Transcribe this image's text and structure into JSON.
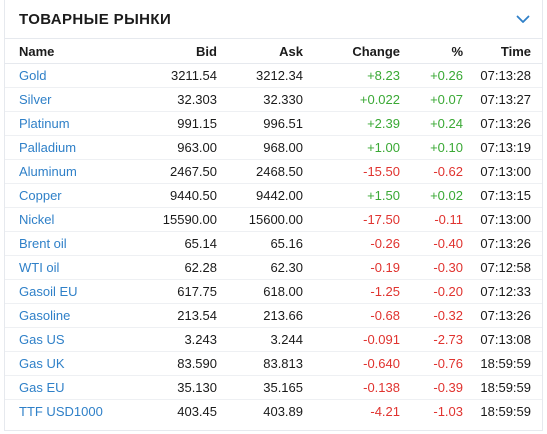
{
  "widget": {
    "title": "ТОВАРНЫЕ РЫНКИ",
    "collapse_icon": "chevron-down-icon",
    "accent_color": "#2f80c8",
    "positive_color": "#3aa935",
    "negative_color": "#e0332f"
  },
  "table": {
    "headers": {
      "name": "Name",
      "bid": "Bid",
      "ask": "Ask",
      "change": "Change",
      "pct": "%",
      "time": "Time"
    },
    "rows": [
      {
        "name": "Gold",
        "bid": "3211.54",
        "ask": "3212.34",
        "change": "+8.23",
        "pct": "+0.26",
        "time": "07:13:28",
        "dir": "pos"
      },
      {
        "name": "Silver",
        "bid": "32.303",
        "ask": "32.330",
        "change": "+0.022",
        "pct": "+0.07",
        "time": "07:13:27",
        "dir": "pos"
      },
      {
        "name": "Platinum",
        "bid": "991.15",
        "ask": "996.51",
        "change": "+2.39",
        "pct": "+0.24",
        "time": "07:13:26",
        "dir": "pos"
      },
      {
        "name": "Palladium",
        "bid": "963.00",
        "ask": "968.00",
        "change": "+1.00",
        "pct": "+0.10",
        "time": "07:13:19",
        "dir": "pos"
      },
      {
        "name": "Aluminum",
        "bid": "2467.50",
        "ask": "2468.50",
        "change": "-15.50",
        "pct": "-0.62",
        "time": "07:13:00",
        "dir": "neg"
      },
      {
        "name": "Copper",
        "bid": "9440.50",
        "ask": "9442.00",
        "change": "+1.50",
        "pct": "+0.02",
        "time": "07:13:15",
        "dir": "pos"
      },
      {
        "name": "Nickel",
        "bid": "15590.00",
        "ask": "15600.00",
        "change": "-17.50",
        "pct": "-0.11",
        "time": "07:13:00",
        "dir": "neg"
      },
      {
        "name": "Brent oil",
        "bid": "65.14",
        "ask": "65.16",
        "change": "-0.26",
        "pct": "-0.40",
        "time": "07:13:26",
        "dir": "neg"
      },
      {
        "name": "WTI oil",
        "bid": "62.28",
        "ask": "62.30",
        "change": "-0.19",
        "pct": "-0.30",
        "time": "07:12:58",
        "dir": "neg"
      },
      {
        "name": "Gasoil EU",
        "bid": "617.75",
        "ask": "618.00",
        "change": "-1.25",
        "pct": "-0.20",
        "time": "07:12:33",
        "dir": "neg"
      },
      {
        "name": "Gasoline",
        "bid": "213.54",
        "ask": "213.66",
        "change": "-0.68",
        "pct": "-0.32",
        "time": "07:13:26",
        "dir": "neg"
      },
      {
        "name": "Gas US",
        "bid": "3.243",
        "ask": "3.244",
        "change": "-0.091",
        "pct": "-2.73",
        "time": "07:13:08",
        "dir": "neg"
      },
      {
        "name": "Gas UK",
        "bid": "83.590",
        "ask": "83.813",
        "change": "-0.640",
        "pct": "-0.76",
        "time": "18:59:59",
        "dir": "neg"
      },
      {
        "name": "Gas EU",
        "bid": "35.130",
        "ask": "35.165",
        "change": "-0.138",
        "pct": "-0.39",
        "time": "18:59:59",
        "dir": "neg"
      },
      {
        "name": "TTF USD1000",
        "bid": "403.45",
        "ask": "403.89",
        "change": "-4.21",
        "pct": "-1.03",
        "time": "18:59:59",
        "dir": "neg"
      }
    ]
  }
}
